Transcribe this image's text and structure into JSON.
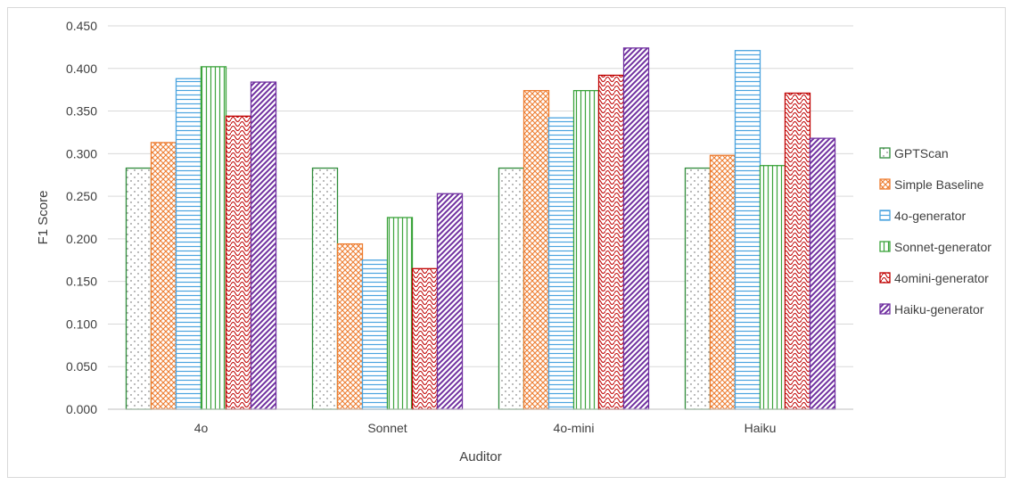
{
  "chart_data": {
    "type": "bar",
    "title": "",
    "xlabel": "Auditor",
    "ylabel": "F1 Score",
    "ylim": [
      0,
      0.45
    ],
    "yticks": [
      "0.000",
      "0.050",
      "0.100",
      "0.150",
      "0.200",
      "0.250",
      "0.300",
      "0.350",
      "0.400",
      "0.450"
    ],
    "categories": [
      "4o",
      "Sonnet",
      "4o-mini",
      "Haiku"
    ],
    "grid": true,
    "legend_position": "right",
    "series": [
      {
        "name": "GPTScan",
        "color": "#2e8b3a",
        "pattern": "dots",
        "values": [
          0.283,
          0.283,
          0.283,
          0.283
        ]
      },
      {
        "name": "Simple Baseline",
        "color": "#ed7d31",
        "pattern": "crosshatch",
        "values": [
          0.313,
          0.194,
          0.374,
          0.298
        ]
      },
      {
        "name": "4o-generator",
        "color": "#4aa3df",
        "pattern": "horizontal",
        "values": [
          0.388,
          0.175,
          0.342,
          0.421
        ]
      },
      {
        "name": "Sonnet-generator",
        "color": "#3ba33b",
        "pattern": "vertical",
        "values": [
          0.402,
          0.225,
          0.374,
          0.286
        ]
      },
      {
        "name": "4omini-generator",
        "color": "#c00000",
        "pattern": "waves",
        "values": [
          0.344,
          0.165,
          0.392,
          0.371
        ]
      },
      {
        "name": "Haiku-generator",
        "color": "#7030a0",
        "pattern": "diagonal",
        "values": [
          0.384,
          0.253,
          0.424,
          0.318
        ]
      }
    ]
  }
}
